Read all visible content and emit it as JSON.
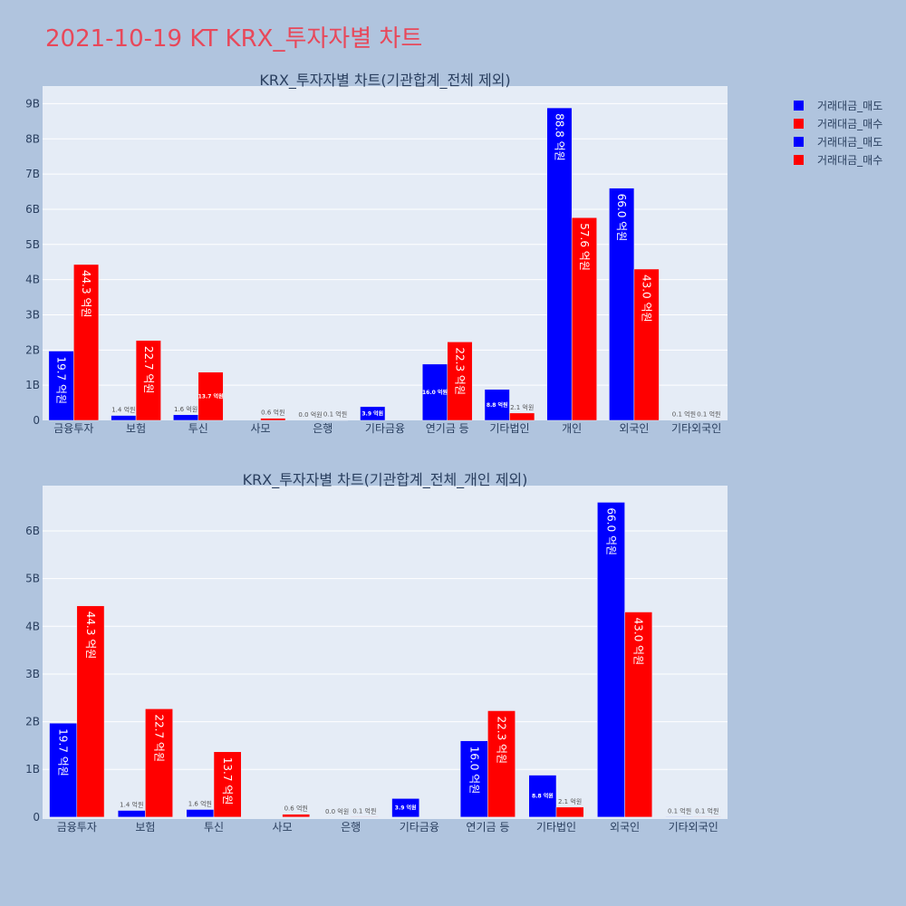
{
  "title": "2021-10-19 KT KRX_투자자별 차트",
  "colors": {
    "sell": "#0000ff",
    "buy": "#ff0000",
    "plot_bg": "#e5ecf6",
    "page_bg": "#b0c4de"
  },
  "legend": [
    {
      "label": "거래대금_매도",
      "color": "#0000ff"
    },
    {
      "label": "거래대금_매수",
      "color": "#ff0000"
    },
    {
      "label": "거래대금_매도",
      "color": "#0000ff"
    },
    {
      "label": "거래대금_매수",
      "color": "#ff0000"
    }
  ],
  "chart_data": [
    {
      "type": "bar",
      "title": "KRX_투자자별 차트(기관합계_전체 제외)",
      "categories": [
        "금융투자",
        "보험",
        "투신",
        "사모",
        "은행",
        "기타금융",
        "연기금 등",
        "기타법인",
        "개인",
        "외국인",
        "기타외국인"
      ],
      "series": [
        {
          "name": "거래대금_매도",
          "values": [
            1970000000,
            140000000,
            160000000,
            0,
            0,
            390000000,
            1600000000,
            880000000,
            8880000000,
            6600000000,
            10000000
          ],
          "labels": [
            "19.7 억원",
            "1.4 억원",
            "1.6 억원",
            "",
            "0.0 억원",
            "3.9 억원",
            "16.0 억원",
            "8.8 억원",
            "88.8 억원",
            "66.0 억원",
            "0.1 억원"
          ]
        },
        {
          "name": "거래대금_매수",
          "values": [
            4430000000,
            2270000000,
            1370000000,
            60000000,
            10000000,
            0,
            2230000000,
            210000000,
            5760000000,
            4300000000,
            10000000
          ],
          "labels": [
            "44.3 억원",
            "22.7 억원",
            "13.7 억원",
            "0.6 억원",
            "0.1 억원",
            "",
            "22.3 억원",
            "2.1 억원",
            "57.6 억원",
            "43.0 억원",
            "0.1 억원"
          ]
        }
      ],
      "ylim": [
        0,
        9500000000
      ],
      "yticks": [
        0,
        1000000000,
        2000000000,
        3000000000,
        4000000000,
        5000000000,
        6000000000,
        7000000000,
        8000000000,
        9000000000
      ],
      "ytick_labels": [
        "0",
        "1B",
        "2B",
        "3B",
        "4B",
        "5B",
        "6B",
        "7B",
        "8B",
        "9B"
      ]
    },
    {
      "type": "bar",
      "title": "KRX_투자자별 차트(기관합계_전체_개인 제외)",
      "categories": [
        "금융투자",
        "보험",
        "투신",
        "사모",
        "은행",
        "기타금융",
        "연기금 등",
        "기타법인",
        "외국인",
        "기타외국인"
      ],
      "series": [
        {
          "name": "거래대금_매도",
          "values": [
            1970000000,
            140000000,
            160000000,
            0,
            0,
            390000000,
            1600000000,
            880000000,
            6600000000,
            10000000
          ],
          "labels": [
            "19.7 억원",
            "1.4 억원",
            "1.6 억원",
            "",
            "0.0 억원",
            "3.9 억원",
            "16.0 억원",
            "8.8 억원",
            "66.0 억원",
            "0.1 억원"
          ]
        },
        {
          "name": "거래대금_매수",
          "values": [
            4430000000,
            2270000000,
            1370000000,
            60000000,
            10000000,
            0,
            2230000000,
            210000000,
            4300000000,
            10000000
          ],
          "labels": [
            "44.3 억원",
            "22.7 억원",
            "13.7 억원",
            "0.6 억원",
            "0.1 억원",
            "",
            "22.3 억원",
            "2.1 억원",
            "43.0 억원",
            "0.1 억원"
          ]
        }
      ],
      "ylim": [
        -40000000,
        6950000000
      ],
      "yticks": [
        0,
        1000000000,
        2000000000,
        3000000000,
        4000000000,
        5000000000,
        6000000000
      ],
      "ytick_labels": [
        "0",
        "1B",
        "2B",
        "3B",
        "4B",
        "5B",
        "6B"
      ]
    }
  ]
}
